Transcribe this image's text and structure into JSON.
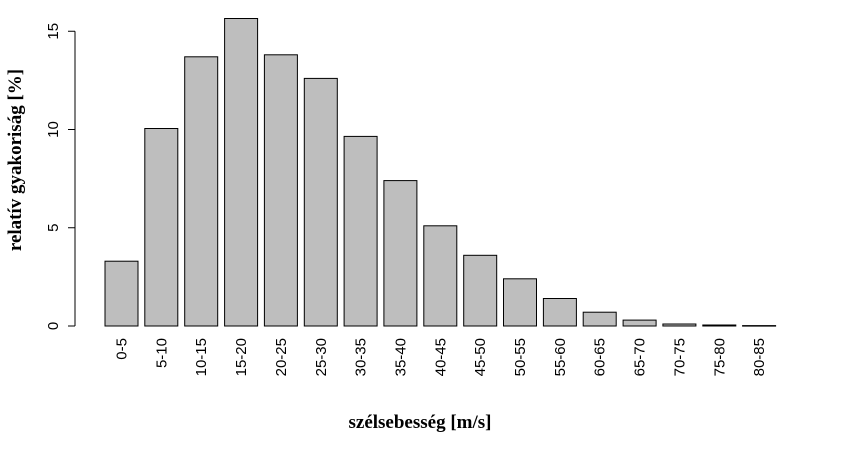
{
  "chart_data": {
    "type": "bar",
    "categories": [
      "0-5",
      "5-10",
      "10-15",
      "15-20",
      "20-25",
      "25-30",
      "30-35",
      "35-40",
      "40-45",
      "45-50",
      "50-55",
      "55-60",
      "60-65",
      "65-70",
      "70-75",
      "75-80",
      "80-85"
    ],
    "values": [
      3.3,
      10.05,
      13.7,
      15.65,
      13.8,
      12.6,
      9.65,
      7.4,
      5.1,
      3.6,
      2.4,
      1.4,
      0.7,
      0.3,
      0.1,
      0.05,
      0.02
    ],
    "title": "",
    "xlabel": "szélsebesség [m/s]",
    "ylabel": "relatív gyakoriság [%]",
    "ylim": [
      0,
      15
    ],
    "yticks": [
      "0",
      "5",
      "10",
      "15"
    ],
    "bar_color": "#bebebe",
    "grid": false,
    "legend": "none"
  }
}
